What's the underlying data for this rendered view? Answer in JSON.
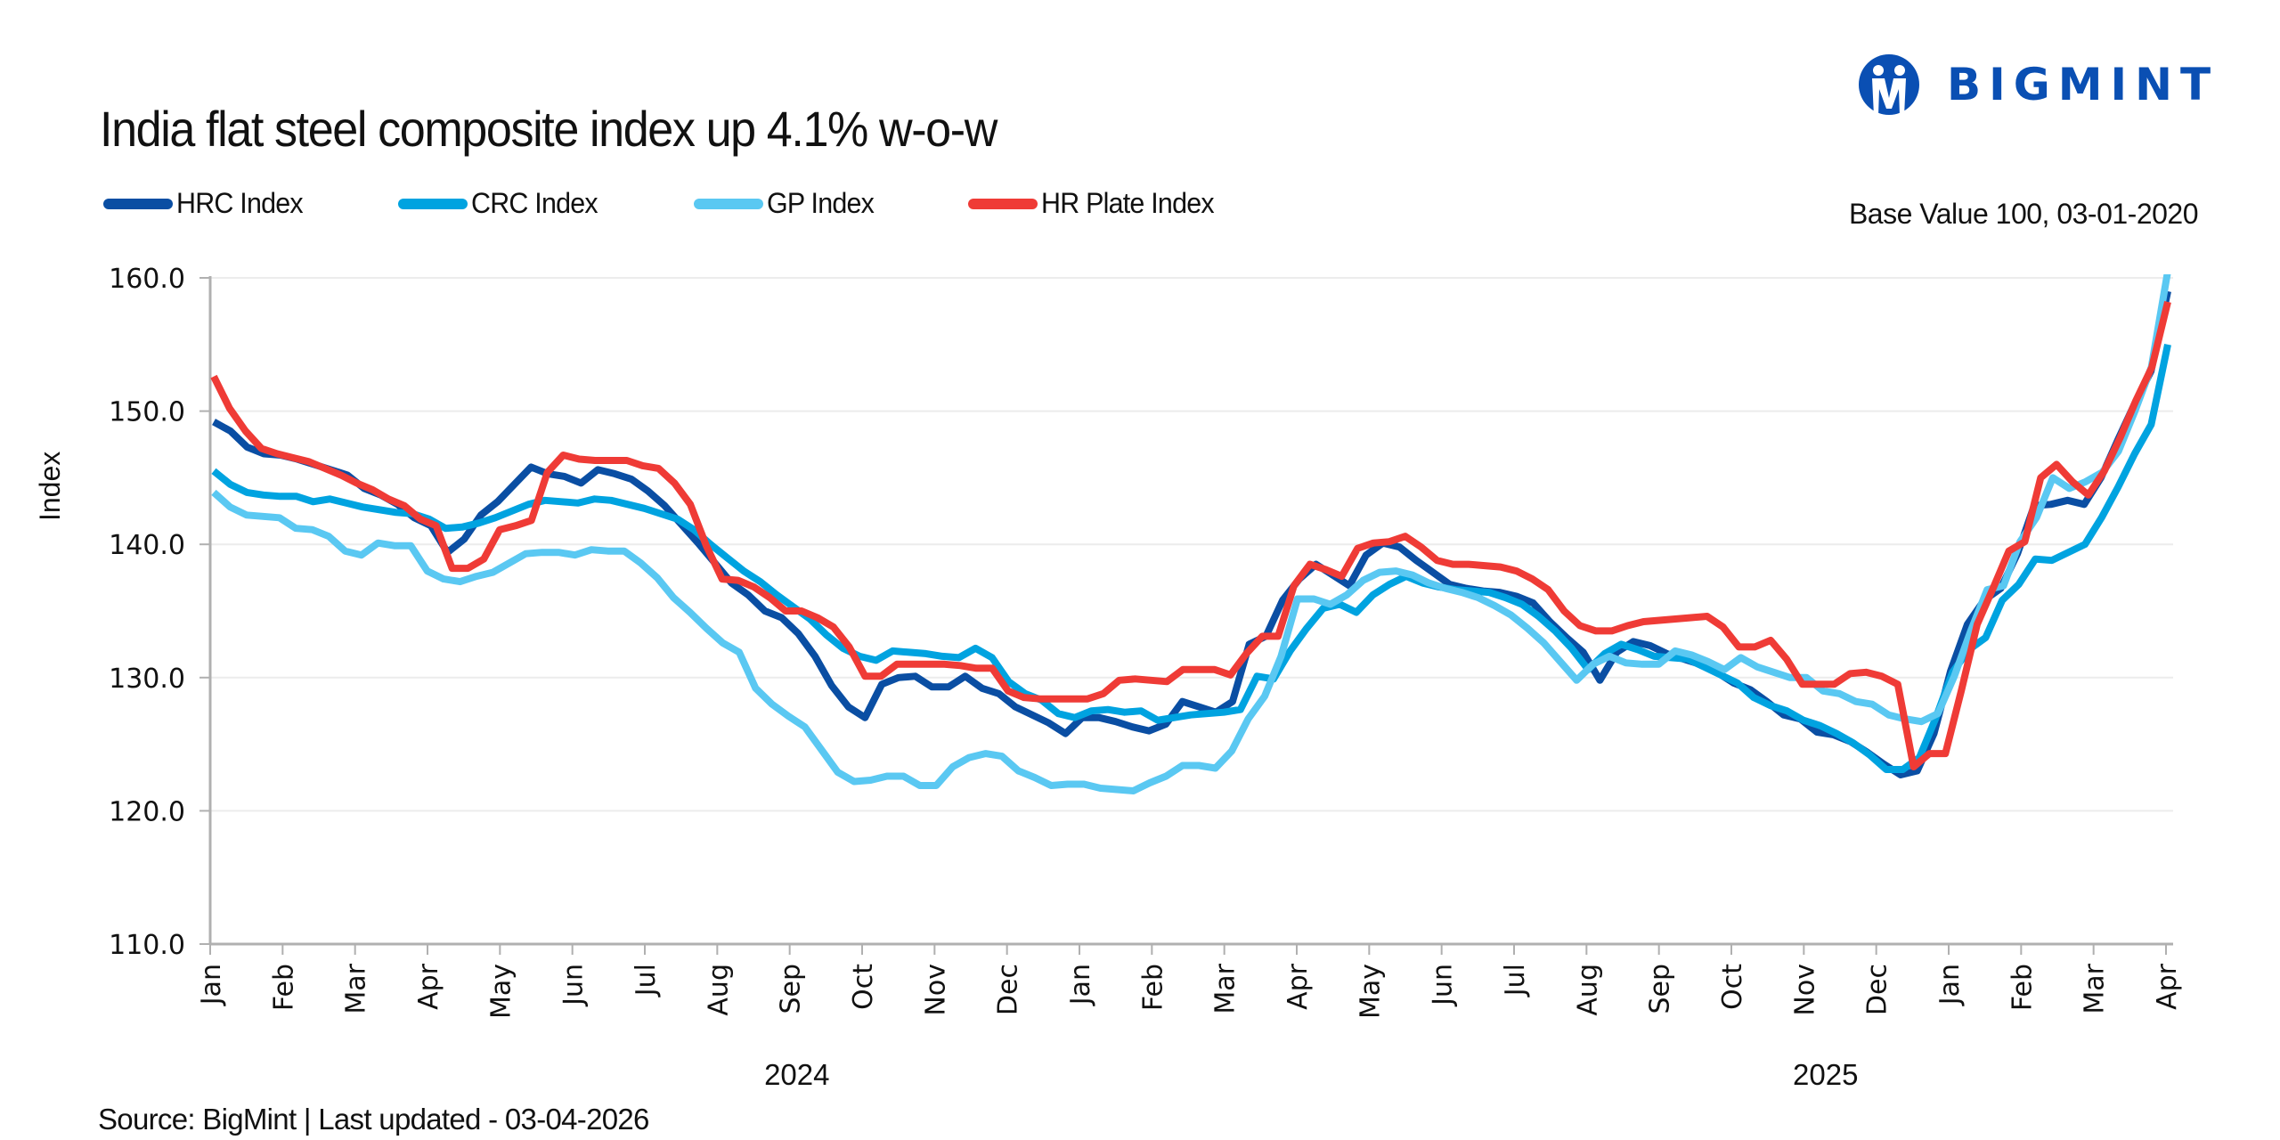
{
  "header": {
    "title": "India flat steel composite index up 4.1% w-o-w",
    "brand": "BIGMINT",
    "base_note": "Base Value 100, 03-01-2020"
  },
  "footer": {
    "source": "Source: BigMint | Last updated - 03-04-2026"
  },
  "chart_data": {
    "type": "line",
    "title": "India flat steel composite index up 4.1% w-o-w",
    "xlabel": "",
    "ylabel": "Index",
    "ylim": [
      110,
      160
    ],
    "yticks": [
      "110.0",
      "120.0",
      "130.0",
      "140.0",
      "150.0",
      "160.0"
    ],
    "ytick_values": [
      110,
      120,
      130,
      140,
      150,
      160
    ],
    "grid": true,
    "legend_position": "top-left",
    "frequency": "weekly",
    "x_start": "Jan 2024",
    "x_end": "Apr 2026",
    "month_ticks": [
      "Jan",
      "Feb",
      "Mar",
      "Apr",
      "May",
      "Jun",
      "Jul",
      "Aug",
      "Sep",
      "Oct",
      "Nov",
      "Dec",
      "Jan",
      "Feb",
      "Mar",
      "Apr",
      "May",
      "Jun",
      "Jul",
      "Aug",
      "Sep",
      "Oct",
      "Nov",
      "Dec",
      "Jan",
      "Feb",
      "Mar",
      "Apr"
    ],
    "year_labels": [
      {
        "label": "2024",
        "center_month_index": 8.1
      },
      {
        "label": "2025",
        "center_month_index": 22.3
      }
    ],
    "series": [
      {
        "name": "HRC Index",
        "color": "#0a4ea3",
        "values": [
          149.2,
          148.5,
          147.3,
          146.8,
          146.7,
          146.4,
          146.0,
          145.6,
          145.2,
          144.2,
          143.7,
          143.0,
          142.0,
          141.4,
          139.4,
          140.4,
          142.2,
          143.2,
          144.5,
          145.8,
          145.3,
          145.1,
          144.6,
          145.6,
          145.3,
          144.9,
          144.0,
          142.9,
          141.5,
          140.1,
          138.6,
          137.1,
          136.2,
          135.0,
          134.5,
          133.3,
          131.6,
          129.4,
          127.8,
          127.0,
          129.5,
          130.0,
          130.1,
          129.3,
          129.3,
          130.1,
          129.2,
          128.8,
          127.8,
          127.2,
          126.6,
          125.8,
          127.0,
          127.0,
          126.7,
          126.3,
          126.0,
          126.5,
          128.2,
          127.8,
          127.4,
          128.2,
          132.5,
          133.1,
          135.8,
          137.4,
          138.5,
          137.7,
          136.9,
          139.2,
          140.1,
          139.8,
          138.8,
          137.9,
          137.0,
          136.7,
          136.5,
          136.4,
          136.1,
          135.6,
          134.2,
          133.0,
          131.9,
          129.8,
          131.9,
          132.7,
          132.4,
          131.8,
          131.4,
          131.0,
          130.4,
          129.6,
          129.1,
          128.2,
          127.2,
          126.9,
          125.9,
          125.7,
          125.2,
          124.4,
          123.5,
          122.7,
          123.0,
          125.8,
          130.5,
          134.0,
          135.8,
          136.7,
          139.3,
          142.9,
          143.0,
          143.3,
          143.0,
          145.0,
          147.8,
          150.5,
          153.0,
          159.0
        ]
      },
      {
        "name": "CRC Index",
        "color": "#00a3e0",
        "values": [
          145.5,
          144.5,
          143.9,
          143.7,
          143.6,
          143.6,
          143.2,
          143.4,
          143.1,
          142.8,
          142.6,
          142.4,
          142.3,
          141.9,
          141.2,
          141.3,
          141.6,
          142.0,
          142.5,
          143.0,
          143.3,
          143.2,
          143.1,
          143.4,
          143.3,
          143.0,
          142.7,
          142.3,
          141.9,
          141.1,
          140.0,
          139.0,
          138.0,
          137.2,
          136.2,
          135.3,
          134.4,
          133.2,
          132.2,
          131.6,
          131.3,
          132.0,
          131.9,
          131.8,
          131.6,
          131.5,
          132.2,
          131.5,
          129.7,
          128.8,
          128.3,
          127.3,
          127.0,
          127.5,
          127.6,
          127.4,
          127.5,
          126.8,
          127.0,
          127.2,
          127.3,
          127.4,
          127.6,
          130.1,
          129.9,
          132.0,
          133.7,
          135.2,
          135.5,
          134.9,
          136.2,
          137.0,
          137.6,
          137.1,
          136.8,
          136.6,
          136.5,
          136.4,
          136.0,
          135.5,
          134.6,
          133.5,
          132.2,
          130.6,
          131.8,
          132.5,
          132.1,
          131.6,
          131.5,
          131.4,
          130.8,
          130.2,
          129.6,
          128.5,
          127.9,
          127.5,
          126.8,
          126.4,
          125.8,
          125.1,
          124.2,
          123.1,
          123.1,
          124.0,
          127.0,
          130.4,
          132.1,
          133.0,
          135.8,
          137.0,
          138.9,
          138.8,
          139.4,
          140.0,
          142.0,
          144.3,
          146.8,
          149.0,
          155.0
        ]
      },
      {
        "name": "GP Index",
        "color": "#5ac8f2",
        "values": [
          143.9,
          142.8,
          142.2,
          142.1,
          142.0,
          141.2,
          141.1,
          140.6,
          139.5,
          139.2,
          140.1,
          139.9,
          139.9,
          138.0,
          137.4,
          137.2,
          137.6,
          137.9,
          138.6,
          139.3,
          139.4,
          139.4,
          139.2,
          139.6,
          139.5,
          139.5,
          138.6,
          137.5,
          136.0,
          134.9,
          133.7,
          132.6,
          131.9,
          129.2,
          128.0,
          127.1,
          126.3,
          124.6,
          122.9,
          122.2,
          122.3,
          122.6,
          122.6,
          121.9,
          121.9,
          123.3,
          124.0,
          124.3,
          124.1,
          123.0,
          122.5,
          121.9,
          122.0,
          122.0,
          121.7,
          121.6,
          121.5,
          122.1,
          122.6,
          123.4,
          123.4,
          123.2,
          124.5,
          126.9,
          128.6,
          131.6,
          135.9,
          135.9,
          135.5,
          136.2,
          137.3,
          137.9,
          138.0,
          137.7,
          137.1,
          136.7,
          136.4,
          136.0,
          135.4,
          134.7,
          133.7,
          132.6,
          131.2,
          129.8,
          131.0,
          131.6,
          131.1,
          131.0,
          131.0,
          132.0,
          131.7,
          131.2,
          130.6,
          131.5,
          130.8,
          130.4,
          130.0,
          130.0,
          129.0,
          128.8,
          128.2,
          128.0,
          127.2,
          126.9,
          126.7,
          127.3,
          130.1,
          133.5,
          136.6,
          136.9,
          140.2,
          142.0,
          145.0,
          144.2,
          144.7,
          145.4,
          147.0,
          150.0,
          153.3,
          160.5
        ]
      },
      {
        "name": "HR Plate Index",
        "color": "#ef3b36",
        "values": [
          152.6,
          150.2,
          148.5,
          147.2,
          146.8,
          146.5,
          146.2,
          145.7,
          145.2,
          144.6,
          144.1,
          143.4,
          142.9,
          141.9,
          141.4,
          138.2,
          138.2,
          138.9,
          141.1,
          141.4,
          141.8,
          145.4,
          146.7,
          146.4,
          146.3,
          146.3,
          146.3,
          145.9,
          145.7,
          144.6,
          143.0,
          139.9,
          137.4,
          137.3,
          136.8,
          136.0,
          135.0,
          135.0,
          134.5,
          133.8,
          132.3,
          130.1,
          130.1,
          131.0,
          131.0,
          131.0,
          131.0,
          130.9,
          130.7,
          130.7,
          129.0,
          128.5,
          128.4,
          128.4,
          128.4,
          128.4,
          128.8,
          129.8,
          129.9,
          129.8,
          129.7,
          130.6,
          130.6,
          130.6,
          130.2,
          131.8,
          133.1,
          133.1,
          136.9,
          138.5,
          138.1,
          137.6,
          139.7,
          140.1,
          140.2,
          140.6,
          139.8,
          138.8,
          138.5,
          138.5,
          138.4,
          138.3,
          138.0,
          137.4,
          136.6,
          135.0,
          133.9,
          133.5,
          133.5,
          133.9,
          134.2,
          134.3,
          134.4,
          134.5,
          134.6,
          133.8,
          132.3,
          132.3,
          132.8,
          131.4,
          129.5,
          129.5,
          129.5,
          130.3,
          130.4,
          130.1,
          129.5,
          123.3,
          124.3,
          124.3,
          129.0,
          134.0,
          136.7,
          139.5,
          140.2,
          145.0,
          146.0,
          144.7,
          143.7,
          145.5,
          148.0,
          150.8,
          153.3,
          158.2
        ]
      }
    ]
  }
}
